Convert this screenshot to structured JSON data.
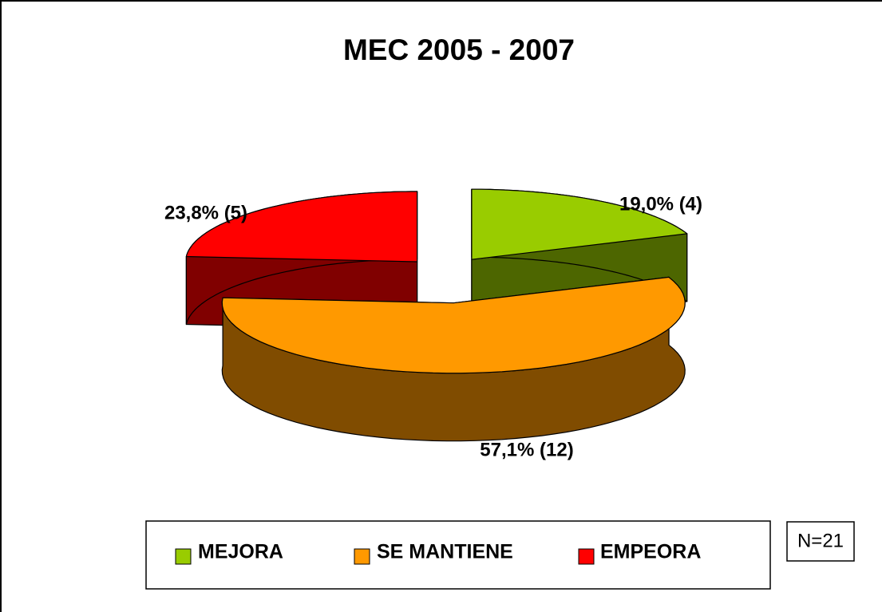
{
  "chart_data": {
    "type": "pie3d",
    "title": "MEC 2005 - 2007",
    "categories": [
      "MEJORA",
      "SE MANTIENE",
      "EMPEORA"
    ],
    "values": [
      19.0,
      57.1,
      23.8
    ],
    "value_labels": [
      "19,0% (4)",
      "57,1% (12)",
      "23,8% (5)"
    ],
    "colors": [
      "#99cc00",
      "#ff9900",
      "#ff0000"
    ],
    "side_colors": [
      "#4d6600",
      "#804c00",
      "#800000"
    ],
    "annotation": "N=21",
    "legend": "bottom"
  }
}
